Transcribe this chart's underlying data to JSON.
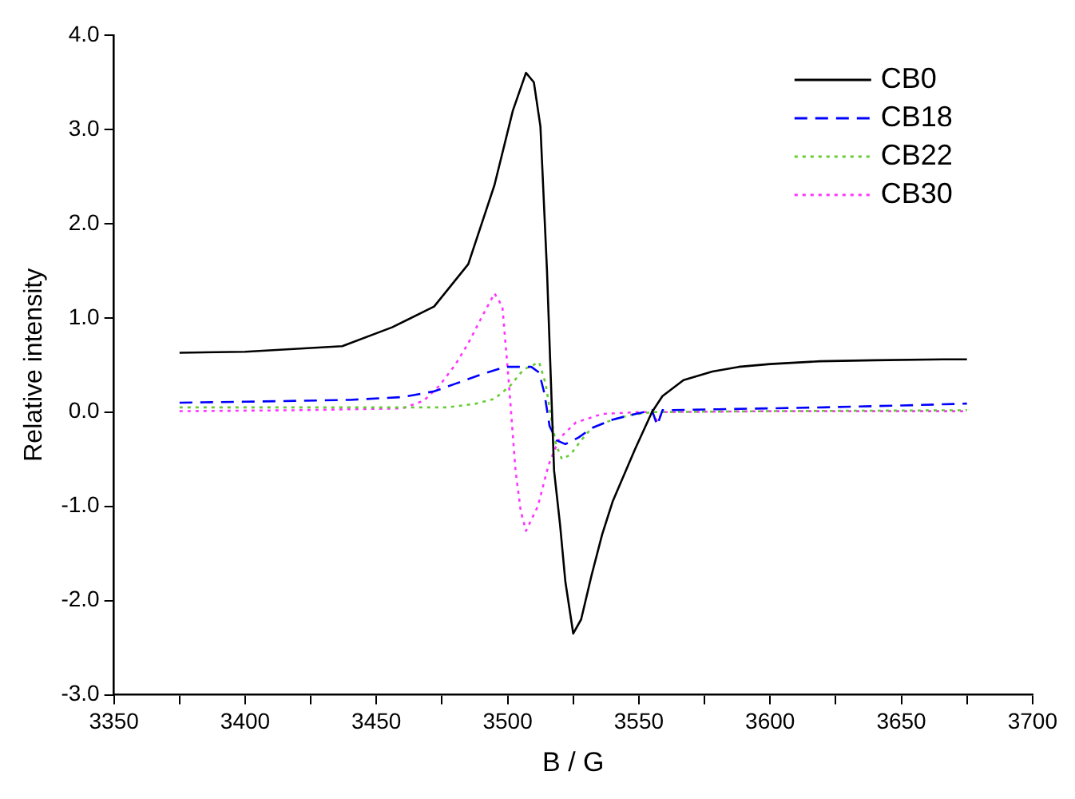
{
  "chart_data": {
    "type": "line",
    "xlabel": "B / G",
    "ylabel": "Relative intensity",
    "xlim": [
      3350,
      3700
    ],
    "ylim": [
      -3,
      4
    ],
    "xticks": [
      3350,
      {
        "value": 3375,
        "label": null
      },
      3400,
      {
        "value": 3425,
        "label": null
      },
      3450,
      {
        "value": 3475,
        "label": null
      },
      3500,
      {
        "value": 3525,
        "label": null
      },
      3550,
      {
        "value": 3575,
        "label": null
      },
      3600,
      {
        "value": 3625,
        "label": null
      },
      3650,
      {
        "value": 3675,
        "label": null
      },
      3700
    ],
    "yticks": [
      {
        "value": -3,
        "label": "-3.0"
      },
      {
        "value": -2,
        "label": "-2.0"
      },
      {
        "value": -1,
        "label": "-1.0"
      },
      {
        "value": 0,
        "label": "0.0"
      },
      {
        "value": 1,
        "label": "1.0"
      },
      {
        "value": 2,
        "label": "2.0"
      },
      {
        "value": 3,
        "label": "3.0"
      },
      {
        "value": 4,
        "label": "4.0"
      }
    ],
    "grid": false,
    "legend": "top right",
    "marker": "none",
    "series": [
      {
        "name": "CB0",
        "color": "#000000",
        "line_style": "solid",
        "x": [
          3375,
          3400,
          3437,
          3456,
          3472,
          3485,
          3495,
          3502,
          3507,
          3510,
          3512.5,
          3515,
          3517.7,
          3520,
          3522,
          3525,
          3528,
          3532,
          3536,
          3540,
          3548.6,
          3555,
          3559,
          3567,
          3578,
          3588,
          3600,
          3619,
          3640,
          3666,
          3675
        ],
        "values": [
          0.63,
          0.64,
          0.7,
          0.9,
          1.12,
          1.57,
          2.41,
          3.2,
          3.6,
          3.5,
          3.03,
          1.5,
          -0.62,
          -1.2,
          -1.8,
          -2.35,
          -2.2,
          -1.73,
          -1.3,
          -0.95,
          -0.39,
          0,
          0.17,
          0.34,
          0.43,
          0.48,
          0.51,
          0.54,
          0.55,
          0.56,
          0.56
        ]
      },
      {
        "name": "CB18",
        "color": "#0000ff",
        "line_style": "dashed",
        "x": [
          3375,
          3400,
          3440,
          3460,
          3472,
          3480,
          3489,
          3499,
          3509,
          3512,
          3514,
          3516,
          3518.7,
          3522,
          3527,
          3532,
          3540,
          3547,
          3555,
          3557,
          3559,
          3580,
          3620,
          3650,
          3675
        ],
        "values": [
          0.1,
          0.11,
          0.13,
          0.16,
          0.22,
          0.3,
          0.39,
          0.48,
          0.48,
          0.42,
          0.2,
          -0.15,
          -0.3,
          -0.34,
          -0.27,
          -0.17,
          -0.08,
          -0.03,
          0.02,
          -0.14,
          0.02,
          0.03,
          0.05,
          0.07,
          0.09
        ]
      },
      {
        "name": "CB22",
        "color": "#66cc33",
        "line_style": "dotted",
        "x": [
          3375,
          3420,
          3460,
          3477,
          3488,
          3495,
          3501,
          3506,
          3512,
          3514.5,
          3516.5,
          3518.5,
          3520.7,
          3524,
          3528,
          3532,
          3540,
          3547,
          3555,
          3600,
          3675
        ],
        "values": [
          0.05,
          0.05,
          0.05,
          0.05,
          0.09,
          0.14,
          0.28,
          0.45,
          0.53,
          0.3,
          -0.05,
          -0.35,
          -0.5,
          -0.45,
          -0.3,
          -0.17,
          -0.08,
          -0.03,
          0,
          0.01,
          0.02
        ]
      },
      {
        "name": "CB30",
        "color": "#ff33ff",
        "line_style": "dotted",
        "x": [
          3375,
          3420,
          3460,
          3468,
          3474,
          3480,
          3485,
          3490,
          3495,
          3498,
          3500.5,
          3503,
          3505,
          3507,
          3511.5,
          3515.6,
          3519.7,
          3526,
          3536,
          3550,
          3555,
          3557,
          3559,
          3600,
          3675
        ],
        "values": [
          0.01,
          0.02,
          0.04,
          0.12,
          0.28,
          0.5,
          0.73,
          1.0,
          1.26,
          1.12,
          0.3,
          -0.62,
          -1.05,
          -1.26,
          -1.0,
          -0.56,
          -0.28,
          -0.11,
          -0.02,
          0,
          0,
          -0.1,
          0,
          0.01,
          0.01
        ]
      }
    ]
  }
}
